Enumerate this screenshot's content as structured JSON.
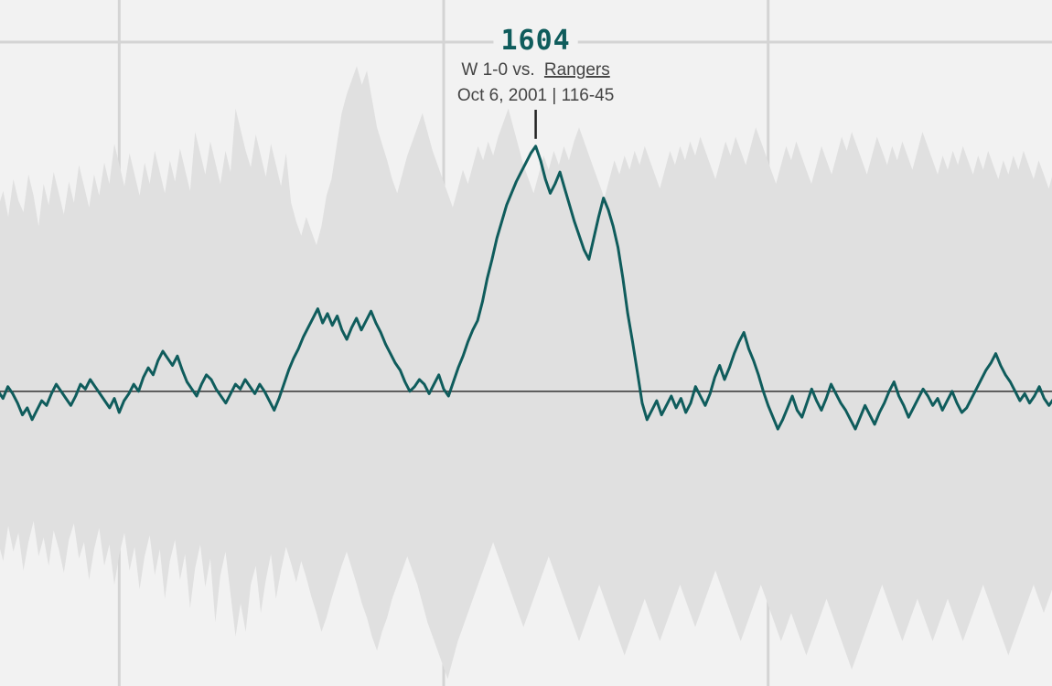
{
  "chart_data": {
    "type": "line",
    "title": "",
    "xlabel": "",
    "ylabel": "",
    "grid": true,
    "colors": {
      "line": "#0f5c5c",
      "band": "#e0e0e0",
      "background": "#f2f2f2",
      "grid": "#d4d4d4",
      "baseline": "#333333"
    },
    "series": [
      {
        "values": [
          1500,
          1497,
          1502,
          1499,
          1495,
          1490,
          1493,
          1488,
          1492,
          1496,
          1494,
          1499,
          1503,
          1500,
          1497,
          1494,
          1498,
          1503,
          1501,
          1505,
          1502,
          1499,
          1496,
          1493,
          1497,
          1491,
          1496,
          1499,
          1503,
          1500,
          1506,
          1510,
          1507,
          1513,
          1517,
          1514,
          1511,
          1515,
          1509,
          1504,
          1501,
          1498,
          1503,
          1507,
          1505,
          1501,
          1498,
          1495,
          1499,
          1503,
          1501,
          1505,
          1502,
          1499,
          1503,
          1500,
          1496,
          1492,
          1497,
          1503,
          1509,
          1514,
          1518,
          1523,
          1527,
          1531,
          1535,
          1529,
          1533,
          1528,
          1532,
          1526,
          1522,
          1527,
          1531,
          1526,
          1530,
          1534,
          1529,
          1525,
          1520,
          1516,
          1512,
          1509,
          1504,
          1500,
          1502,
          1505,
          1503,
          1499,
          1503,
          1507,
          1501,
          1498,
          1504,
          1510,
          1515,
          1521,
          1526,
          1530,
          1538,
          1548,
          1556,
          1565,
          1572,
          1579,
          1584,
          1589,
          1593,
          1597,
          1601,
          1604,
          1598,
          1590,
          1584,
          1588,
          1593,
          1586,
          1579,
          1572,
          1566,
          1560,
          1556,
          1565,
          1574,
          1582,
          1577,
          1570,
          1561,
          1548,
          1533,
          1521,
          1508,
          1495,
          1488,
          1492,
          1496,
          1490,
          1494,
          1498,
          1493,
          1497,
          1491,
          1495,
          1502,
          1498,
          1494,
          1499,
          1506,
          1511,
          1505,
          1510,
          1516,
          1521,
          1525,
          1518,
          1513,
          1507,
          1500,
          1494,
          1489,
          1484,
          1488,
          1493,
          1498,
          1492,
          1489,
          1495,
          1501,
          1496,
          1492,
          1497,
          1503,
          1499,
          1495,
          1492,
          1488,
          1484,
          1489,
          1494,
          1490,
          1486,
          1491,
          1495,
          1500,
          1504,
          1498,
          1494,
          1489,
          1493,
          1497,
          1501,
          1498,
          1494,
          1497,
          1492,
          1496,
          1500,
          1495,
          1491,
          1493,
          1497,
          1501,
          1505,
          1509,
          1512,
          1516,
          1511,
          1507,
          1504,
          1500,
          1496,
          1499,
          1495,
          1498,
          1502,
          1497,
          1494,
          1497
        ]
      }
    ],
    "band_upper": [
      1578,
      1585,
      1574,
      1590,
      1581,
      1576,
      1592,
      1583,
      1570,
      1588,
      1579,
      1593,
      1584,
      1575,
      1589,
      1580,
      1596,
      1587,
      1578,
      1592,
      1583,
      1597,
      1588,
      1605,
      1596,
      1587,
      1601,
      1592,
      1583,
      1597,
      1588,
      1602,
      1593,
      1584,
      1598,
      1589,
      1603,
      1594,
      1585,
      1610,
      1601,
      1592,
      1606,
      1597,
      1588,
      1602,
      1593,
      1620,
      1611,
      1602,
      1595,
      1609,
      1600,
      1591,
      1605,
      1596,
      1587,
      1601,
      1580,
      1572,
      1566,
      1574,
      1568,
      1562,
      1570,
      1583,
      1590,
      1604,
      1618,
      1626,
      1632,
      1638,
      1630,
      1636,
      1624,
      1612,
      1605,
      1598,
      1590,
      1584,
      1592,
      1600,
      1606,
      1612,
      1618,
      1610,
      1602,
      1596,
      1590,
      1584,
      1578,
      1586,
      1594,
      1588,
      1596,
      1604,
      1598,
      1606,
      1600,
      1608,
      1614,
      1620,
      1612,
      1604,
      1596,
      1590,
      1584,
      1592,
      1600,
      1594,
      1602,
      1596,
      1604,
      1598,
      1606,
      1612,
      1606,
      1600,
      1594,
      1588,
      1582,
      1590,
      1598,
      1592,
      1600,
      1594,
      1602,
      1596,
      1604,
      1598,
      1592,
      1586,
      1594,
      1602,
      1596,
      1604,
      1598,
      1606,
      1600,
      1608,
      1602,
      1596,
      1590,
      1598,
      1606,
      1600,
      1608,
      1602,
      1596,
      1604,
      1612,
      1606,
      1600,
      1594,
      1588,
      1596,
      1604,
      1598,
      1606,
      1600,
      1594,
      1588,
      1596,
      1604,
      1598,
      1592,
      1600,
      1608,
      1602,
      1610,
      1604,
      1598,
      1592,
      1600,
      1608,
      1602,
      1596,
      1604,
      1598,
      1606,
      1600,
      1594,
      1602,
      1610,
      1604,
      1598,
      1592,
      1600,
      1594,
      1602,
      1596,
      1604,
      1598,
      1592,
      1600,
      1594,
      1602,
      1596,
      1590,
      1598,
      1592,
      1600,
      1594,
      1602,
      1596,
      1590,
      1598,
      1592,
      1586,
      1594
    ],
    "band_lower": [
      1436,
      1428,
      1443,
      1432,
      1440,
      1424,
      1436,
      1445,
      1430,
      1438,
      1426,
      1441,
      1433,
      1423,
      1437,
      1444,
      1429,
      1436,
      1420,
      1433,
      1442,
      1426,
      1435,
      1418,
      1431,
      1440,
      1424,
      1434,
      1416,
      1430,
      1439,
      1422,
      1433,
      1412,
      1428,
      1437,
      1420,
      1431,
      1408,
      1425,
      1435,
      1417,
      1429,
      1402,
      1422,
      1432,
      1414,
      1396,
      1410,
      1398,
      1418,
      1426,
      1406,
      1420,
      1431,
      1412,
      1424,
      1434,
      1427,
      1419,
      1428,
      1421,
      1413,
      1406,
      1398,
      1404,
      1412,
      1419,
      1426,
      1432,
      1425,
      1418,
      1410,
      1404,
      1396,
      1390,
      1398,
      1404,
      1412,
      1418,
      1424,
      1430,
      1424,
      1418,
      1410,
      1402,
      1396,
      1390,
      1384,
      1378,
      1386,
      1394,
      1400,
      1406,
      1412,
      1418,
      1424,
      1430,
      1436,
      1430,
      1424,
      1418,
      1412,
      1406,
      1400,
      1406,
      1412,
      1418,
      1424,
      1430,
      1424,
      1418,
      1412,
      1406,
      1400,
      1394,
      1400,
      1406,
      1412,
      1418,
      1412,
      1406,
      1400,
      1394,
      1388,
      1394,
      1400,
      1406,
      1412,
      1406,
      1400,
      1394,
      1400,
      1406,
      1412,
      1418,
      1412,
      1406,
      1400,
      1406,
      1412,
      1418,
      1424,
      1418,
      1412,
      1406,
      1400,
      1394,
      1400,
      1406,
      1412,
      1418,
      1412,
      1406,
      1400,
      1394,
      1400,
      1406,
      1400,
      1394,
      1388,
      1394,
      1400,
      1406,
      1412,
      1406,
      1400,
      1394,
      1388,
      1382,
      1388,
      1394,
      1400,
      1406,
      1412,
      1418,
      1412,
      1406,
      1400,
      1394,
      1400,
      1406,
      1412,
      1406,
      1400,
      1394,
      1400,
      1406,
      1412,
      1406,
      1400,
      1394,
      1400,
      1406,
      1412,
      1418,
      1412,
      1406,
      1400,
      1394,
      1388,
      1394,
      1400,
      1406,
      1412,
      1418,
      1412,
      1406,
      1412,
      1418,
      1424,
      1418,
      1412,
      1406,
      1412
    ],
    "ylim": [
      1375,
      1666
    ],
    "baseline": 1500,
    "gridlines_y": [
      1550,
      1450
    ],
    "gridlines_x": [
      25,
      92,
      159
    ],
    "peak": {
      "index": 111,
      "value": "1604",
      "result": "W 1-0 vs.",
      "opponent": "Rangers",
      "date_record": "Oct 6, 2001 | 116-45",
      "color": "#0f5c5c"
    }
  }
}
